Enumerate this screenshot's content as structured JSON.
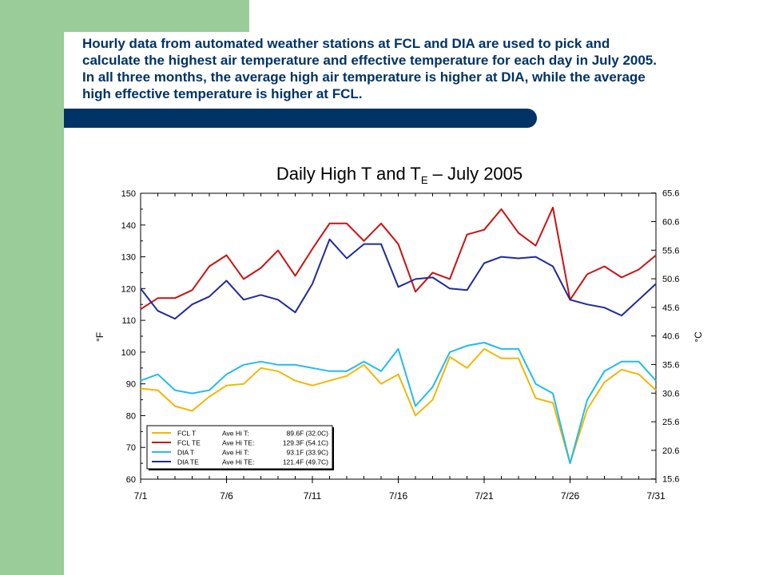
{
  "slide": {
    "text_lines": [
      "Hourly data from automated weather stations at FCL and DIA are used to pick and",
      "calculate the highest air temperature and effective temperature for each day in July 2005.",
      "In all three months, the average high air temperature is higher at DIA, while the average",
      "high effective temperature is higher at FCL."
    ]
  },
  "chart_data": {
    "type": "line",
    "title": "Daily High T and T",
    "title_subscript": "E",
    "title_suffix": " – July 2005",
    "ylabel_left": "°F",
    "ylabel_right": "°C",
    "ylim": [
      60,
      150
    ],
    "yticks_left": [
      "60",
      "70",
      "80",
      "90",
      "100",
      "110",
      "120",
      "130",
      "140",
      "150"
    ],
    "yticks_right": [
      "15.6",
      "20.6",
      "25.6",
      "30.6",
      "35.6",
      "40.6",
      "45.6",
      "50.6",
      "55.6",
      "60.6",
      "65.6"
    ],
    "xlim": [
      1,
      31
    ],
    "xticks": [
      {
        "day": 1,
        "label": "7/1"
      },
      {
        "day": 6,
        "label": "7/6"
      },
      {
        "day": 11,
        "label": "7/11"
      },
      {
        "day": 16,
        "label": "7/16"
      },
      {
        "day": 21,
        "label": "7/21"
      },
      {
        "day": 26,
        "label": "7/26"
      },
      {
        "day": 31,
        "label": "7/31"
      }
    ],
    "x": [
      1,
      2,
      3,
      4,
      5,
      6,
      7,
      8,
      9,
      10,
      11,
      12,
      13,
      14,
      15,
      16,
      17,
      18,
      19,
      20,
      21,
      22,
      23,
      24,
      25,
      26,
      27,
      28,
      29,
      30,
      31
    ],
    "series": [
      {
        "name": "FCL T",
        "stat": "Ave Hi T:",
        "avg": "89.6F (32.0C)",
        "color": "#f2b705",
        "values": [
          88.5,
          88,
          83,
          81.5,
          86,
          89.5,
          90,
          95,
          94,
          91,
          89.5,
          91,
          92.5,
          96,
          90,
          93,
          80,
          85,
          98.5,
          95,
          101,
          98,
          98,
          85.5,
          84,
          65,
          82,
          90.5,
          94.5,
          93,
          88
        ]
      },
      {
        "name": "FCL TE",
        "stat": "Ave Hi TE:",
        "avg": "129.3F (54.1C)",
        "color": "#cc1111",
        "values": [
          113.5,
          117,
          117,
          119.5,
          127,
          130.5,
          123,
          126.5,
          132,
          124,
          132.5,
          140.5,
          140.5,
          135,
          140.5,
          134,
          119,
          125,
          123,
          137,
          138.5,
          145,
          137.5,
          133.5,
          145.5,
          116.5,
          124.5,
          127,
          123.5,
          126,
          130.5
        ]
      },
      {
        "name": "DIA T",
        "stat": "Ave Hi T:",
        "avg": "93.1F (33.9C)",
        "color": "#22bbee",
        "values": [
          91,
          93,
          88,
          87,
          88,
          93,
          96,
          97,
          96,
          96,
          95,
          94,
          94,
          97,
          94,
          101,
          83,
          89,
          100,
          102,
          103,
          101,
          101,
          90,
          87,
          65,
          85,
          94,
          97,
          97,
          91
        ]
      },
      {
        "name": "DIA TE",
        "stat": "Ave Hi TE:",
        "avg": "121.4F (49.7C)",
        "color": "#1f2a9c",
        "values": [
          120,
          113,
          110.5,
          115,
          117.5,
          122.5,
          116.5,
          118,
          116.5,
          112.5,
          121.5,
          135.5,
          129.5,
          134,
          134,
          120.5,
          123,
          123.5,
          120,
          119.5,
          128,
          130,
          129.5,
          130,
          127,
          116.5,
          115,
          114,
          111.5,
          116.5,
          121.5
        ]
      }
    ],
    "legend_placement": "bottom-left",
    "grid": false
  }
}
